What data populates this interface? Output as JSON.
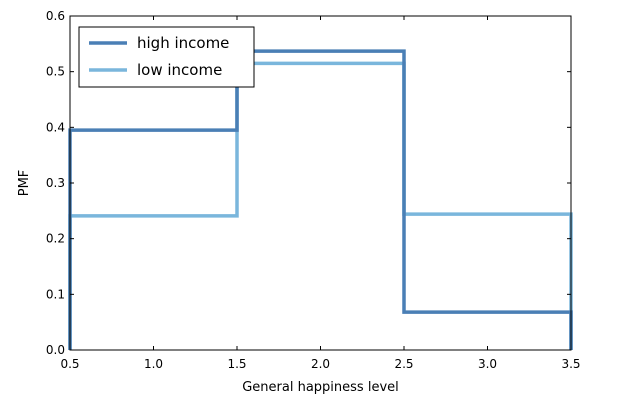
{
  "chart_data": {
    "type": "line",
    "xlabel": "General happiness level",
    "ylabel": "PMF",
    "xlim": [
      0.5,
      3.5
    ],
    "ylim": [
      0.0,
      0.6
    ],
    "xticks": [
      0.5,
      1.0,
      1.5,
      2.0,
      2.5,
      3.0,
      3.5
    ],
    "xtick_labels": [
      "0.5",
      "1.0",
      "1.5",
      "2.0",
      "2.5",
      "3.0",
      "3.5"
    ],
    "yticks": [
      0.0,
      0.1,
      0.2,
      0.3,
      0.4,
      0.5,
      0.6
    ],
    "ytick_labels": [
      "0.0",
      "0.1",
      "0.2",
      "0.3",
      "0.4",
      "0.5",
      "0.6"
    ],
    "legend_position": "top-left",
    "grid": false,
    "step_edges": [
      0.5,
      1.5,
      2.5,
      3.5
    ],
    "categories": [
      1,
      2,
      3
    ],
    "series": [
      {
        "name": "high income",
        "values": [
          0.395,
          0.537,
          0.068
        ],
        "color": "#4a7fb5"
      },
      {
        "name": "low income",
        "values": [
          0.241,
          0.515,
          0.244
        ],
        "color": "#7ab6dc"
      }
    ]
  }
}
